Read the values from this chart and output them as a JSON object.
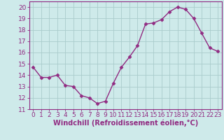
{
  "x": [
    0,
    1,
    2,
    3,
    4,
    5,
    6,
    7,
    8,
    9,
    10,
    11,
    12,
    13,
    14,
    15,
    16,
    17,
    18,
    19,
    20,
    21,
    22,
    23
  ],
  "y": [
    14.7,
    13.8,
    13.8,
    14.0,
    13.1,
    13.0,
    12.2,
    12.0,
    11.5,
    11.7,
    13.3,
    14.7,
    15.6,
    16.6,
    18.5,
    18.6,
    18.9,
    19.6,
    20.0,
    19.8,
    19.0,
    17.7,
    16.4,
    16.1
  ],
  "line_color": "#912b82",
  "marker": "D",
  "marker_size": 2.5,
  "line_width": 1.0,
  "bg_color": "#ceeaea",
  "grid_color": "#aacccc",
  "xlabel": "Windchill (Refroidissement éolien,°C)",
  "xlabel_fontsize": 7,
  "ylabel_ticks": [
    11,
    12,
    13,
    14,
    15,
    16,
    17,
    18,
    19,
    20
  ],
  "xlim": [
    -0.5,
    23.5
  ],
  "ylim": [
    11,
    20.5
  ],
  "tick_fontsize": 6.5,
  "tick_color": "#912b82",
  "axis_color": "#912b82"
}
